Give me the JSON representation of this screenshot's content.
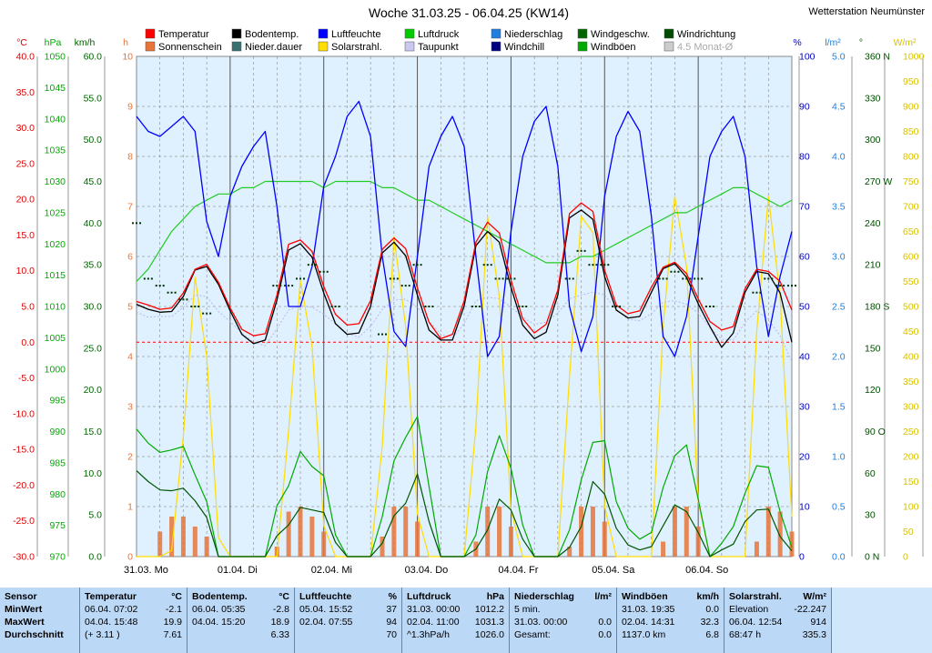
{
  "chart_data": {
    "type": "line",
    "title": "Woche 31.03.25 - 06.04.25 (KW14)",
    "station": "Wetterstation Neumünster",
    "days": [
      "31.03.  Mo",
      "01.04.  Di",
      "02.04.  Mi",
      "03.04.  Do",
      "04.04.  Fr",
      "05.04.  Sa",
      "06.04.  So"
    ],
    "legend": [
      {
        "label": "Temperatur",
        "color": "#ff0000"
      },
      {
        "label": "Bodentemp.",
        "color": "#000000"
      },
      {
        "label": "Luftfeuchte",
        "color": "#0000ff"
      },
      {
        "label": "Luftdruck",
        "color": "#00cc00"
      },
      {
        "label": "Niederschlag",
        "color": "#1e7fe0"
      },
      {
        "label": "Windgeschw.",
        "color": "#006600"
      },
      {
        "label": "Windrichtung",
        "color": "#004d00"
      },
      {
        "label": "Sonnenschein",
        "color": "#e8743a"
      },
      {
        "label": "Nieder.dauer",
        "color": "#3a7070"
      },
      {
        "label": "Solarstrahl.",
        "color": "#ffdd00"
      },
      {
        "label": "Taupunkt",
        "color": "#c8c8f0"
      },
      {
        "label": "Windchill",
        "color": "#000080"
      },
      {
        "label": "Windböen",
        "color": "#00aa00"
      },
      {
        "label": "4.5 Monat-Ø",
        "color": "#cccccc"
      }
    ],
    "axes": {
      "temp": {
        "unit": "°C",
        "color": "#e00000",
        "min": -30,
        "max": 40,
        "step": 5
      },
      "pressure": {
        "unit": "hPa",
        "color": "#00aa00",
        "min": 970,
        "max": 1050,
        "step": 5
      },
      "wind": {
        "unit": "km/h",
        "color": "#006400",
        "min": 0,
        "max": 60,
        "step": 5
      },
      "sun": {
        "unit": "h",
        "color": "#e8743a",
        "min": 0,
        "max": 10,
        "step": 1
      },
      "humidity": {
        "unit": "%",
        "color": "#0000c0",
        "min": 0,
        "max": 100,
        "step": 10
      },
      "rain": {
        "unit": "l/m²",
        "color": "#1e7fe0",
        "min": 0,
        "max": 5,
        "step": 0.5
      },
      "direction": {
        "unit": "°",
        "color": "#004d00",
        "min": 0,
        "max": 360,
        "step": 30,
        "labels": {
          "0": "N",
          "90": "O",
          "180": "S",
          "270": "W",
          "360": "N"
        }
      },
      "solar": {
        "unit": "W/m²",
        "color": "#d8c000",
        "min": 0,
        "max": 1000,
        "step": 50
      }
    },
    "series": {
      "temperature": [
        5.7,
        5.2,
        4.6,
        4.8,
        6.9,
        10.2,
        10.9,
        8.4,
        4.8,
        1.8,
        0.9,
        1.2,
        6.6,
        13.7,
        14.3,
        12.7,
        7.8,
        3.9,
        2.4,
        2.6,
        5.8,
        13.0,
        14.6,
        13.1,
        7.6,
        2.8,
        0.5,
        1.1,
        5.8,
        14.0,
        16.8,
        15.3,
        8.7,
        3.3,
        1.3,
        2.5,
        7.3,
        18.0,
        19.5,
        18.3,
        10.1,
        5.2,
        4.0,
        4.4,
        7.7,
        10.5,
        11.2,
        9.6,
        6.1,
        2.9,
        1.7,
        2.2,
        7.5,
        10.2,
        9.9,
        8.5,
        4.5
      ],
      "ground_temp": [
        5.3,
        4.6,
        4.2,
        4.3,
        6.4,
        10.1,
        10.6,
        8.1,
        4.4,
        1.1,
        -0.2,
        0.3,
        5.9,
        12.9,
        13.8,
        11.9,
        6.9,
        2.6,
        1.1,
        1.3,
        5.0,
        12.5,
        14.0,
        12.1,
        6.6,
        1.7,
        0.3,
        0.3,
        5.1,
        13.5,
        15.5,
        14.0,
        7.7,
        2.4,
        0.5,
        1.4,
        6.6,
        17.4,
        18.5,
        17.2,
        9.2,
        4.5,
        3.4,
        3.6,
        7.0,
        10.3,
        11.0,
        9.1,
        5.4,
        2.2,
        -0.7,
        1.3,
        7.0,
        9.9,
        9.6,
        6.9,
        0.0
      ],
      "dewpoint": [
        4.2,
        3.5,
        3.6,
        3.6,
        4.9,
        6.6,
        6.4,
        4.3,
        2.9,
        1.3,
        0.0,
        -0.5,
        1.9,
        4.5,
        5.1,
        4.9,
        3.9,
        2.6,
        1.2,
        0.7,
        2.2,
        4.6,
        5.9,
        6.0,
        4.9,
        2.9,
        1.1,
        0.6,
        2.6,
        5.8,
        6.3,
        6.1,
        4.9,
        3.5,
        2.5,
        2.8,
        4.1,
        6.1,
        6.6,
        7.0,
        6.6,
        4.6,
        3.2,
        3.0,
        4.0,
        5.6,
        5.8,
        5.3,
        4.1,
        2.1,
        0.4,
        0.3,
        2.8,
        4.4,
        3.2,
        0.9,
        -2.7
      ],
      "humidity": [
        88,
        85,
        84,
        86,
        88,
        85,
        67,
        60,
        72,
        78,
        82,
        85,
        70,
        50,
        50,
        58,
        74,
        80,
        88,
        91,
        84,
        60,
        45,
        42,
        60,
        78,
        84,
        88,
        82,
        60,
        40,
        44,
        65,
        80,
        87,
        90,
        78,
        50,
        41,
        48,
        72,
        84,
        89,
        85,
        68,
        44,
        40,
        48,
        64,
        80,
        85,
        88,
        80,
        58,
        44,
        56,
        65
      ],
      "pressure": [
        1014,
        1016,
        1019,
        1022,
        1024,
        1026,
        1027,
        1028,
        1028,
        1029,
        1029,
        1030,
        1030,
        1030,
        1030,
        1030,
        1029,
        1030,
        1030,
        1030,
        1030,
        1029,
        1029,
        1028,
        1027,
        1027,
        1026,
        1025,
        1024,
        1023,
        1022,
        1021,
        1020,
        1019,
        1018,
        1017,
        1017,
        1017,
        1018,
        1018,
        1019,
        1020,
        1021,
        1022,
        1023,
        1024,
        1025,
        1025,
        1026,
        1027,
        1028,
        1029,
        1029,
        1028,
        1027,
        1026,
        1027
      ],
      "wind": [
        10.3,
        9.0,
        8.0,
        7.9,
        8.2,
        6.7,
        4.7,
        0,
        0,
        0,
        0,
        0,
        2.5,
        3.8,
        5.9,
        5.6,
        5.3,
        1.7,
        0,
        0,
        0,
        1.6,
        4.9,
        6.4,
        9.9,
        4.2,
        0,
        0,
        0,
        0.9,
        3.2,
        6.9,
        5.6,
        2.1,
        0,
        0,
        0,
        1.1,
        3.6,
        9.0,
        7.5,
        3.4,
        1.4,
        0.8,
        1.2,
        3.7,
        6.2,
        5.4,
        2.9,
        0,
        0.8,
        1.5,
        4.2,
        5.6,
        5.7,
        2.4,
        0.7
      ],
      "gusts": [
        15.3,
        13.6,
        12.5,
        12.8,
        13.2,
        9.8,
        6.6,
        0,
        0,
        0,
        0,
        0,
        6.1,
        8.5,
        12.6,
        10.8,
        9.7,
        2.6,
        0,
        0,
        0,
        4.8,
        11.5,
        14.3,
        16.8,
        8.4,
        0,
        0,
        0,
        2.6,
        10.2,
        14.5,
        10.6,
        3.8,
        0,
        0,
        0,
        3.2,
        9.2,
        13.7,
        13.9,
        6.6,
        3.4,
        2.1,
        2.9,
        8.3,
        12.1,
        13.4,
        6.9,
        0,
        1.6,
        3.6,
        7.6,
        10.9,
        10.7,
        5.4,
        1.1
      ],
      "solar": [
        0,
        0,
        0,
        12,
        240,
        558,
        400,
        38,
        0,
        0,
        0,
        0,
        0,
        252,
        552,
        420,
        62,
        0,
        0,
        0,
        0,
        220,
        640,
        460,
        86,
        0,
        0,
        0,
        0,
        260,
        680,
        520,
        92,
        0,
        0,
        0,
        0,
        360,
        680,
        648,
        100,
        0,
        0,
        0,
        0,
        460,
        720,
        580,
        110,
        0,
        0,
        0,
        0,
        450,
        720,
        520,
        80
      ],
      "sun_hours": [
        0,
        0,
        0.5,
        0.8,
        0.8,
        0.6,
        0.4,
        0,
        0,
        0,
        0,
        0,
        0.2,
        0.9,
        1.0,
        0.8,
        0.5,
        0,
        0,
        0,
        0,
        0.4,
        1.0,
        1.0,
        0.7,
        0,
        0,
        0,
        0,
        0.3,
        1.0,
        1.0,
        0.6,
        0,
        0,
        0,
        0,
        0.2,
        1.0,
        1.0,
        0.7,
        0,
        0,
        0,
        0,
        0.3,
        1.0,
        1.0,
        0.6,
        0,
        0,
        0,
        0,
        0.3,
        1.0,
        0.9,
        0.5
      ],
      "direction": [
        240,
        200,
        195,
        190,
        185,
        180,
        175,
        0,
        0,
        0,
        0,
        0,
        195,
        195,
        200,
        210,
        205,
        180,
        0,
        0,
        0,
        160,
        200,
        195,
        210,
        180,
        0,
        0,
        0,
        180,
        210,
        200,
        200,
        180,
        0,
        0,
        0,
        200,
        220,
        210,
        210,
        180,
        0,
        0,
        0,
        200,
        205,
        200,
        200,
        180,
        0,
        0,
        0,
        190,
        200,
        195,
        195
      ]
    },
    "stats": {
      "headers": [
        "Sensor",
        "Temperatur",
        "°C",
        "Bodentemp.",
        "°C",
        "Luftfeuchte",
        "%",
        "Luftdruck",
        "hPa",
        "Niederschlag",
        "l/m²",
        "Windböen",
        "km/h",
        "Solarstrahl.",
        "W/m²"
      ],
      "row_labels": [
        "MinWert",
        "MaxWert",
        "Durchschnitt"
      ],
      "temp": [
        [
          "06.04.  07:02",
          "-2.1"
        ],
        [
          "04.04.  15:48",
          "19.9"
        ],
        [
          "(+ 3.11 )",
          "7.61"
        ]
      ],
      "ground": [
        [
          "06.04.  05:35",
          "-2.8"
        ],
        [
          "04.04.  15:20",
          "18.9"
        ],
        [
          "",
          "6.33"
        ]
      ],
      "humidity": [
        [
          "05.04.  15:52",
          "37"
        ],
        [
          "02.04.  07:55",
          "94"
        ],
        [
          "",
          "70"
        ]
      ],
      "pressure": [
        [
          "31.03.  00:00",
          "1012.2"
        ],
        [
          "02.04.  11:00",
          "1031.3"
        ],
        [
          "^1.3hPa/h",
          "1026.0"
        ]
      ],
      "rain": [
        [
          "5 min.",
          ""
        ],
        [
          "31.03.  00:00",
          "0.0"
        ],
        [
          "Gesamt:",
          "0.0"
        ]
      ],
      "gusts": [
        [
          "31.03.  19:35",
          "0.0"
        ],
        [
          "02.04.  14:31",
          "32.3"
        ],
        [
          "1137.0 km",
          "6.8"
        ]
      ],
      "solar": [
        [
          "Elevation",
          "-22.247"
        ],
        [
          "06.04.  12:54",
          "914"
        ],
        [
          "68:47 h",
          "335.3"
        ]
      ]
    }
  }
}
